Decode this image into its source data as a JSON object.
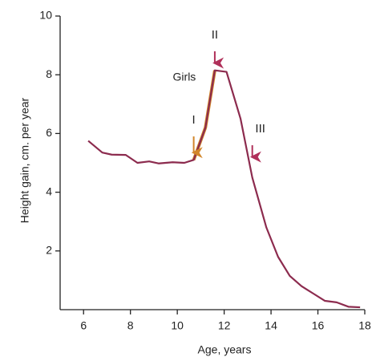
{
  "chart_data": {
    "type": "line",
    "x_label": "Age, years",
    "y_label": "Height gain, cm. per year",
    "xlim": [
      5,
      18
    ],
    "xticks": [
      6,
      8,
      10,
      12,
      14,
      16,
      18
    ],
    "ylim": [
      0,
      10
    ],
    "yticks": [
      2,
      4,
      6,
      8,
      10
    ],
    "series": [
      {
        "name": "Girls",
        "color": "#8c2b4e",
        "x": [
          6.2,
          6.8,
          7.2,
          7.8,
          8.3,
          8.8,
          9.2,
          9.8,
          10.3,
          10.7,
          11.2,
          11.6,
          12.1,
          12.7,
          13.2,
          13.8,
          14.3,
          14.8,
          15.3,
          15.8,
          16.3,
          16.8,
          17.3,
          17.8
        ],
        "values": [
          5.75,
          5.35,
          5.28,
          5.27,
          5.0,
          5.05,
          4.98,
          5.02,
          5.0,
          5.1,
          6.2,
          8.15,
          8.1,
          6.5,
          4.5,
          2.8,
          1.8,
          1.15,
          0.8,
          0.55,
          0.3,
          0.25,
          0.1,
          0.08
        ]
      }
    ],
    "annotations": [
      {
        "text": "I",
        "color": "#d2862a"
      },
      {
        "text": "II",
        "color": "#b0305a"
      },
      {
        "text": "III",
        "color": "#b0305a"
      }
    ]
  }
}
